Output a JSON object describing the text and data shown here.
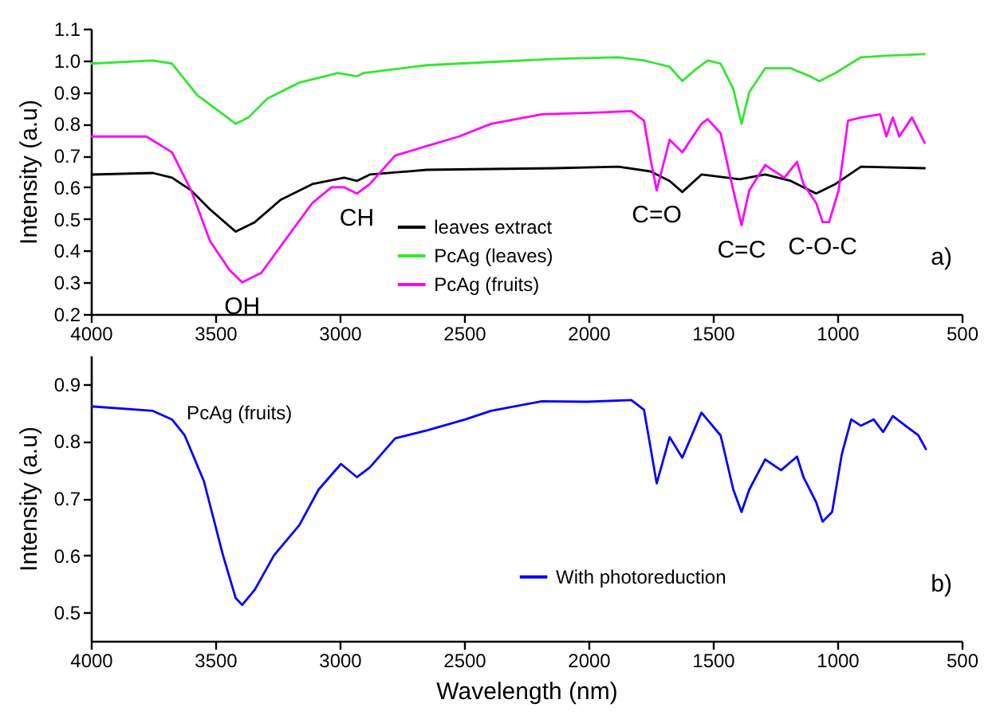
{
  "chart_data": [
    {
      "type": "line",
      "title": "a)",
      "ylabel": "Intensity (a.u)",
      "xlim": [
        4000,
        500
      ],
      "xticks": [
        4000,
        3500,
        3000,
        2500,
        2000,
        1500,
        1000,
        500
      ],
      "ylim": [
        0.2,
        1.1
      ],
      "yticks": [
        0.2,
        0.3,
        0.4,
        0.5,
        0.6,
        0.7,
        0.8,
        0.9,
        {
          "value": 1,
          "label": "1.0"
        },
        1.1
      ],
      "legend": "bottom",
      "grid": false,
      "marker": "none",
      "line_style": "solid",
      "annotations": [
        {
          "text": "OH",
          "x": 3392,
          "y": 0.3
        },
        {
          "text": "CH",
          "x": 2931,
          "y": 0.58
        },
        {
          "text": "C=O",
          "x": 1726,
          "y": 0.59
        },
        {
          "text": "C=C",
          "x": 1385,
          "y": 0.48
        },
        {
          "text": "C-O-C",
          "x": 1059,
          "y": 0.49
        }
      ],
      "series": [
        {
          "name": "leaves extract",
          "color": "#000000",
          "x": [
            4000,
            3751,
            3674,
            3597,
            3521,
            3418,
            3341,
            3238,
            3110,
            2982,
            2931,
            2879,
            2649,
            2136,
            1880,
            1751,
            1674,
            1623,
            1546,
            1392,
            1290,
            1187,
            1085,
            1008,
            905,
            649
          ],
          "values": [
            0.64,
            0.645,
            0.63,
            0.59,
            0.53,
            0.46,
            0.49,
            0.56,
            0.61,
            0.63,
            0.62,
            0.64,
            0.655,
            0.66,
            0.665,
            0.65,
            0.62,
            0.585,
            0.64,
            0.625,
            0.64,
            0.62,
            0.58,
            0.61,
            0.665,
            0.66
          ]
        },
        {
          "name": "PcAg (leaves)",
          "color": "#33e633",
          "x": [
            4000,
            3751,
            3674,
            3572,
            3469,
            3418,
            3367,
            3290,
            3162,
            3008,
            2931,
            2905,
            2649,
            2392,
            2136,
            1880,
            1777,
            1726,
            1674,
            1623,
            1572,
            1521,
            1469,
            1418,
            1385,
            1354,
            1290,
            1187,
            1110,
            1072,
            1008,
            905,
            803,
            649
          ],
          "values": [
            0.99,
            1.0,
            0.99,
            0.89,
            0.83,
            0.8,
            0.82,
            0.88,
            0.93,
            0.96,
            0.95,
            0.96,
            0.985,
            0.995,
            1.005,
            1.01,
            1.0,
            0.99,
            0.98,
            0.935,
            0.97,
            1.0,
            0.99,
            0.91,
            0.8,
            0.9,
            0.975,
            0.975,
            0.95,
            0.935,
            0.96,
            1.01,
            1.015,
            1.02
          ]
        },
        {
          "name": "PcAg (fruits)",
          "color": "#ff00ff",
          "x": [
            4000,
            3777,
            3674,
            3597,
            3521,
            3444,
            3392,
            3315,
            3213,
            3110,
            3033,
            2982,
            2931,
            2879,
            2777,
            2649,
            2521,
            2392,
            2187,
            1982,
            1828,
            1777,
            1751,
            1726,
            1674,
            1623,
            1546,
            1521,
            1469,
            1418,
            1385,
            1354,
            1290,
            1213,
            1162,
            1136,
            1085,
            1059,
            1033,
            995,
            957,
            905,
            828,
            803,
            777,
            751,
            700,
            649
          ],
          "values": [
            0.76,
            0.76,
            0.71,
            0.59,
            0.43,
            0.34,
            0.3,
            0.33,
            0.44,
            0.55,
            0.6,
            0.6,
            0.58,
            0.61,
            0.7,
            0.73,
            0.76,
            0.8,
            0.83,
            0.835,
            0.84,
            0.81,
            0.69,
            0.59,
            0.75,
            0.71,
            0.8,
            0.815,
            0.77,
            0.59,
            0.48,
            0.59,
            0.67,
            0.63,
            0.68,
            0.61,
            0.55,
            0.49,
            0.49,
            0.59,
            0.81,
            0.82,
            0.83,
            0.76,
            0.82,
            0.76,
            0.82,
            0.74
          ]
        }
      ]
    },
    {
      "type": "line",
      "title": "b)",
      "subtitle": "PcAg (fruits)",
      "xlabel": "Wavelength (nm)",
      "ylabel": "Intensity (a.u)",
      "xlim": [
        4000,
        500
      ],
      "xticks": [
        4000,
        3500,
        3000,
        2500,
        2000,
        1500,
        1000,
        500
      ],
      "ylim": [
        0.45,
        0.95
      ],
      "yticks": [
        0.5,
        0.6,
        0.7,
        0.8,
        0.9
      ],
      "legend": "bottom right",
      "grid": false,
      "marker": "none",
      "line_style": "solid",
      "series": [
        {
          "name": "With photoreduction",
          "color": "#0000ff",
          "x": [
            4000,
            3751,
            3674,
            3623,
            3546,
            3469,
            3418,
            3392,
            3341,
            3264,
            3162,
            3085,
            2995,
            2931,
            2879,
            2777,
            2649,
            2495,
            2392,
            2187,
            2008,
            1828,
            1777,
            1726,
            1674,
            1623,
            1546,
            1469,
            1418,
            1385,
            1354,
            1290,
            1226,
            1162,
            1136,
            1085,
            1059,
            1021,
            982,
            944,
            905,
            854,
            816,
            777,
            726,
            674,
            644
          ],
          "values": [
            0.861,
            0.853,
            0.838,
            0.81,
            0.73,
            0.6,
            0.525,
            0.513,
            0.54,
            0.6,
            0.653,
            0.715,
            0.76,
            0.737,
            0.754,
            0.805,
            0.819,
            0.838,
            0.853,
            0.87,
            0.869,
            0.872,
            0.855,
            0.726,
            0.807,
            0.771,
            0.85,
            0.81,
            0.715,
            0.676,
            0.715,
            0.768,
            0.749,
            0.773,
            0.737,
            0.693,
            0.659,
            0.676,
            0.777,
            0.838,
            0.827,
            0.838,
            0.816,
            0.844,
            0.827,
            0.81,
            0.786
          ]
        }
      ]
    }
  ]
}
